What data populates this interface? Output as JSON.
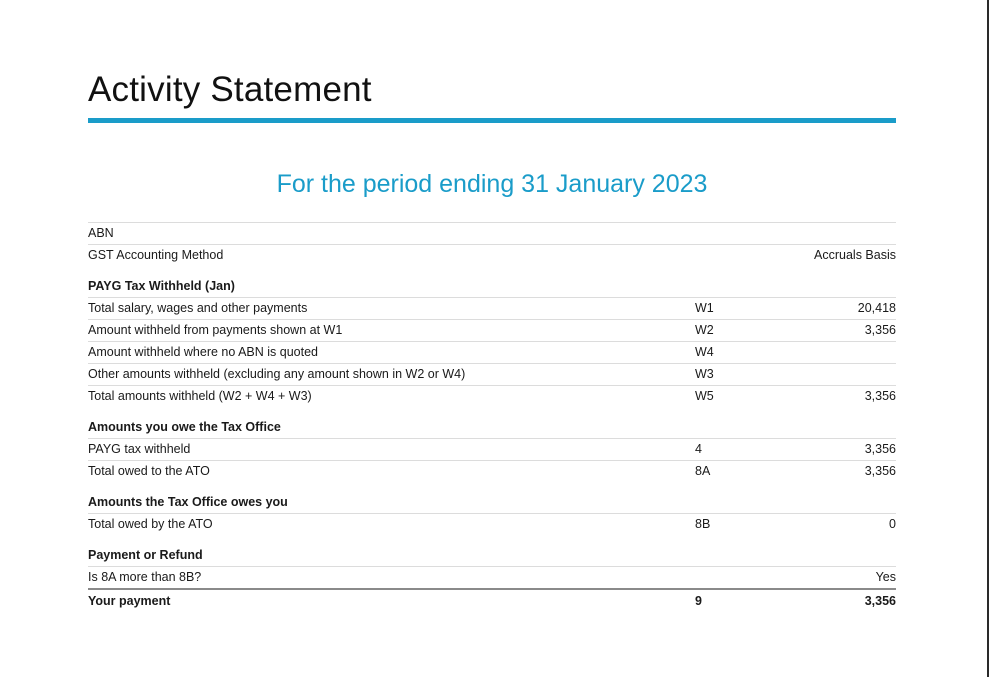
{
  "title": "Activity Statement",
  "period": "For the period ending 31 January 2023",
  "top_rows": [
    {
      "label": "ABN",
      "code": "",
      "value": ""
    },
    {
      "label": "GST Accounting Method",
      "code": "",
      "value": "Accruals Basis"
    }
  ],
  "payg": {
    "heading": "PAYG Tax Withheld (Jan)",
    "rows": [
      {
        "label": "Total salary, wages and other payments",
        "code": "W1",
        "value": "20,418"
      },
      {
        "label": "Amount withheld from payments shown at W1",
        "code": "W2",
        "value": "3,356"
      },
      {
        "label": "Amount withheld where no ABN is quoted",
        "code": "W4",
        "value": ""
      },
      {
        "label": "Other amounts withheld (excluding any amount shown in W2 or W4)",
        "code": "W3",
        "value": ""
      },
      {
        "label": "Total amounts withheld (W2 + W4 + W3)",
        "code": "W5",
        "value": "3,356"
      }
    ]
  },
  "owe_ato": {
    "heading": "Amounts you owe the Tax Office",
    "rows": [
      {
        "label": "PAYG tax withheld",
        "code": "4",
        "value": "3,356"
      },
      {
        "label": "Total owed to the ATO",
        "code": "8A",
        "value": "3,356"
      }
    ]
  },
  "ato_owes": {
    "heading": "Amounts the Tax Office owes you",
    "rows": [
      {
        "label": "Total owed by the ATO",
        "code": "8B",
        "value": "0"
      }
    ]
  },
  "payment": {
    "heading": "Payment or Refund",
    "rows": [
      {
        "label": "Is 8A more than 8B?",
        "code": "",
        "value": "Yes"
      }
    ],
    "total": {
      "label": "Your payment",
      "code": "9",
      "value": "3,356"
    }
  }
}
